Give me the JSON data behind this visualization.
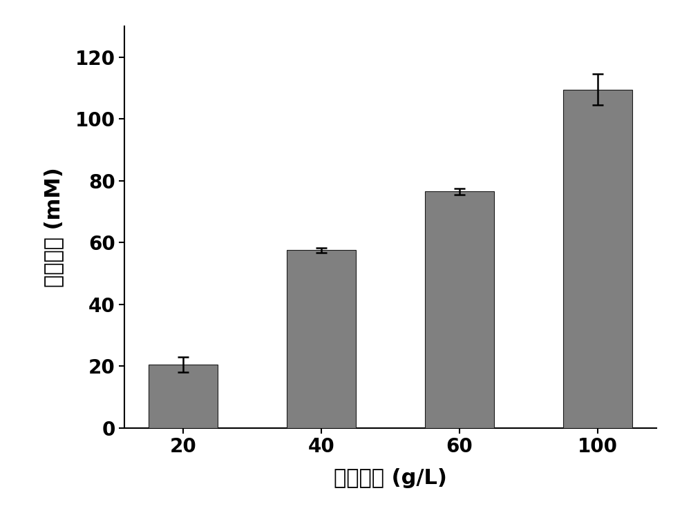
{
  "categories": [
    "20",
    "40",
    "60",
    "100"
  ],
  "values": [
    20.5,
    57.5,
    76.5,
    109.5
  ],
  "errors": [
    2.5,
    0.8,
    1.0,
    5.0
  ],
  "bar_color": "#808080",
  "bar_edgecolor": "#1a1a1a",
  "bar_width": 0.5,
  "xlabel": "底物浓度 (g/L)",
  "ylabel": "氢气产量 (mM)",
  "ylim": [
    0,
    130
  ],
  "yticks": [
    0,
    20,
    40,
    60,
    80,
    100,
    120
  ],
  "title": "",
  "xlabel_fontsize": 22,
  "ylabel_fontsize": 22,
  "tick_fontsize": 20,
  "background_color": "#ffffff",
  "error_capsize": 6,
  "error_linewidth": 1.8
}
